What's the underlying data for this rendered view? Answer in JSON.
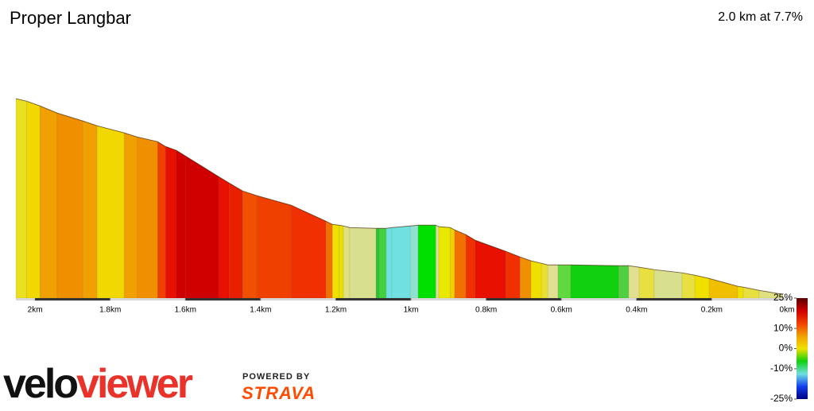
{
  "chart_data": {
    "type": "profile",
    "title": "Proper Langbar",
    "subtitle": "2.0 km at 7.7%",
    "x": [
      2.051,
      2.023,
      1.987,
      1.941,
      1.873,
      1.835,
      1.763,
      1.729,
      1.674,
      1.653,
      1.624,
      1.6,
      1.512,
      1.484,
      1.448,
      1.41,
      1.319,
      1.226,
      1.209,
      1.192,
      1.18,
      1.163,
      1.093,
      1.085,
      1.066,
      1.051,
      1.002,
      0.981,
      0.934,
      0.926,
      0.896,
      0.884,
      0.854,
      0.829,
      0.748,
      0.71,
      0.681,
      0.653,
      0.636,
      0.609,
      0.575,
      0.448,
      0.421,
      0.393,
      0.353,
      0.279,
      0.245,
      0.207,
      0.131,
      0.116,
      0.074,
      0.011
    ],
    "values": [
      153.9,
      152.0,
      148.2,
      142.6,
      136.4,
      132.6,
      127.0,
      123.8,
      120.1,
      116.3,
      113.2,
      108.8,
      92.6,
      87.6,
      81.3,
      77.6,
      70.1,
      57.5,
      55.0,
      54.4,
      53.8,
      52.5,
      51.9,
      51.9,
      51.9,
      52.5,
      53.8,
      54.4,
      54.4,
      53.2,
      52.5,
      50.7,
      46.9,
      42.5,
      33.8,
      29.4,
      26.3,
      24.4,
      23.1,
      23.1,
      23.1,
      22.5,
      22.5,
      21.3,
      19.4,
      16.9,
      15.0,
      12.5,
      6.3,
      5.6,
      3.1,
      0
    ],
    "segment_colors": [
      "#e8e020",
      "#f0d800",
      "#f0a000",
      "#f09000",
      "#f0a000",
      "#f0d800",
      "#f0a000",
      "#f09000",
      "#f04000",
      "#e81000",
      "#d00000",
      "#d00000",
      "#e81000",
      "#e82000",
      "#f05000",
      "#f04000",
      "#f03000",
      "#f07000",
      "#f0e000",
      "#e8e000",
      "#e0e080",
      "#d8e090",
      "#30c030",
      "#40d040",
      "#70e0e0",
      "#70e0e0",
      "#90e0d0",
      "#00e000",
      "#d8e090",
      "#e8e800",
      "#f0d000",
      "#f07000",
      "#f03000",
      "#e81000",
      "#f03000",
      "#f09000",
      "#f0e000",
      "#e8e030",
      "#e0e090",
      "#60d840",
      "#10d010",
      "#50d040",
      "#e0e090",
      "#e8e040",
      "#d8e090",
      "#e8e040",
      "#f0e000",
      "#f0c000",
      "#f0e000",
      "#e8e040",
      "#e0e080"
    ],
    "xlim": [
      2.051,
      0
    ],
    "ylim": [
      -3,
      154
    ],
    "xticks": [
      {
        "value": 2,
        "label": "2km"
      },
      {
        "value": 1.8,
        "label": "1.8km"
      },
      {
        "value": 1.6,
        "label": "1.6km"
      },
      {
        "value": 1.4,
        "label": "1.4km"
      },
      {
        "value": 1.2,
        "label": "1.2km"
      },
      {
        "value": 1,
        "label": "1km"
      },
      {
        "value": 0.8,
        "label": "0.8km"
      },
      {
        "value": 0.6,
        "label": "0.6km"
      },
      {
        "value": 0.4,
        "label": "0.4km"
      },
      {
        "value": 0.2,
        "label": "0.2km"
      },
      {
        "value": 0,
        "label": "0km"
      }
    ],
    "colorbar": {
      "lim": [
        -25,
        25
      ],
      "ticks": [
        {
          "value": 25,
          "label": "25%"
        },
        {
          "value": 10,
          "label": "10%"
        },
        {
          "value": 0,
          "label": "0%"
        },
        {
          "value": -10,
          "label": "-10%"
        },
        {
          "value": -25,
          "label": "-25%"
        }
      ],
      "colors": [
        "#5a0000",
        "#d00000",
        "#f04000",
        "#f0a000",
        "#f0e000",
        "#10d010",
        "#70e0e0",
        "#1040f0",
        "#000080"
      ]
    }
  },
  "branding": {
    "velo": "velo",
    "viewer": "viewer",
    "powered_by": "POWERED BY",
    "strava": "STRAVA"
  }
}
